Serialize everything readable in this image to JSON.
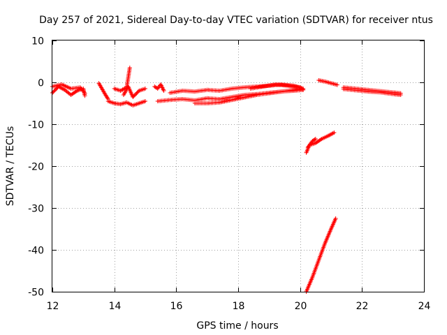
{
  "chart_data": {
    "type": "scatter",
    "title": "Day 257 of 2021, Sidereal Day-to-day VTEC variation (SDTVAR) for receiver ntus",
    "xlabel": "GPS time / hours",
    "ylabel": "SDTVAR / TECUs",
    "xlim": [
      12,
      24
    ],
    "ylim": [
      -50,
      10
    ],
    "xticks": [
      12,
      14,
      16,
      18,
      20,
      22,
      24
    ],
    "yticks": [
      10,
      0,
      -10,
      -20,
      -30,
      -40,
      -50
    ],
    "grid": true,
    "marker": "+",
    "color": "#ff0000",
    "series": [
      {
        "segments": [
          {
            "x": [
              12.0,
              12.2,
              12.4,
              12.6,
              12.8,
              13.0,
              13.05
            ],
            "y": [
              -2.5,
              -1.0,
              -1.8,
              -3.0,
              -2.0,
              -1.5,
              -3.2
            ]
          },
          {
            "x": [
              12.0,
              12.3,
              12.6,
              12.9,
              13.05
            ],
            "y": [
              -1.0,
              -0.5,
              -1.5,
              -1.2,
              -2.6
            ]
          },
          {
            "x": [
              13.5,
              13.6,
              13.7,
              13.8
            ],
            "y": [
              -0.2,
              -1.5,
              -2.8,
              -4.0
            ]
          },
          {
            "x": [
              13.8,
              14.0,
              14.2,
              14.4,
              14.6,
              14.8,
              15.0
            ],
            "y": [
              -4.5,
              -5.0,
              -5.2,
              -4.8,
              -5.5,
              -5.0,
              -4.5
            ]
          },
          {
            "x": [
              14.0,
              14.2,
              14.4,
              14.5
            ],
            "y": [
              -1.5,
              -2.0,
              -1.2,
              3.5
            ]
          },
          {
            "x": [
              14.3,
              14.45,
              14.6,
              14.8,
              15.0
            ],
            "y": [
              -3.0,
              -1.0,
              -3.5,
              -2.0,
              -1.5
            ]
          },
          {
            "x": [
              15.3,
              15.4,
              15.5,
              15.6
            ],
            "y": [
              -1.0,
              -1.5,
              -0.5,
              -2.0
            ]
          },
          {
            "x": [
              15.4,
              15.8,
              16.2,
              16.6,
              17.0,
              17.4,
              17.8,
              18.2,
              18.6,
              19.0,
              19.4,
              19.8,
              20.1
            ],
            "y": [
              -4.5,
              -4.2,
              -4.0,
              -4.3,
              -3.8,
              -4.0,
              -3.5,
              -3.0,
              -2.8,
              -2.5,
              -2.2,
              -2.0,
              -1.8
            ]
          },
          {
            "x": [
              15.8,
              16.2,
              16.6,
              17.0,
              17.4,
              17.8,
              18.2,
              18.6,
              19.0,
              19.4,
              19.8,
              20.1
            ],
            "y": [
              -2.5,
              -2.0,
              -2.2,
              -1.8,
              -2.0,
              -1.5,
              -1.2,
              -1.0,
              -0.8,
              -0.5,
              -0.8,
              -1.5
            ]
          },
          {
            "x": [
              16.6,
              17.0,
              17.4,
              17.8,
              18.2,
              18.6,
              19.0,
              19.4,
              19.8,
              20.1
            ],
            "y": [
              -5.0,
              -5.0,
              -4.8,
              -4.2,
              -3.6,
              -3.0,
              -2.6,
              -2.2,
              -1.8,
              -1.5
            ]
          },
          {
            "x": [
              18.4,
              18.8,
              19.2,
              19.6,
              20.0,
              20.1
            ],
            "y": [
              -1.5,
              -1.0,
              -0.5,
              -0.8,
              -1.2,
              -1.8
            ]
          },
          {
            "x": [
              20.2,
              20.3,
              20.5,
              20.7,
              20.9,
              21.1
            ],
            "y": [
              -16.8,
              -15.0,
              -14.5,
              -13.5,
              -12.8,
              -12.0
            ]
          },
          {
            "x": [
              20.25,
              20.4,
              20.5
            ],
            "y": [
              -15.5,
              -14.0,
              -13.5
            ]
          },
          {
            "x": [
              20.2,
              20.4,
              20.6,
              20.8,
              21.0,
              21.15
            ],
            "y": [
              -50.0,
              -46.5,
              -42.5,
              -38.5,
              -35.0,
              -32.5
            ]
          },
          {
            "x": [
              20.6,
              20.8,
              21.0,
              21.2
            ],
            "y": [
              0.5,
              0.2,
              -0.2,
              -0.6
            ]
          },
          {
            "x": [
              21.4,
              21.8,
              22.2,
              22.6,
              23.0,
              23.25
            ],
            "y": [
              -1.2,
              -1.5,
              -1.8,
              -2.1,
              -2.4,
              -2.6
            ]
          },
          {
            "x": [
              21.4,
              21.8,
              22.2,
              22.6,
              23.0,
              23.25
            ],
            "y": [
              -1.6,
              -1.9,
              -2.2,
              -2.4,
              -2.8,
              -3.0
            ]
          }
        ]
      }
    ]
  }
}
